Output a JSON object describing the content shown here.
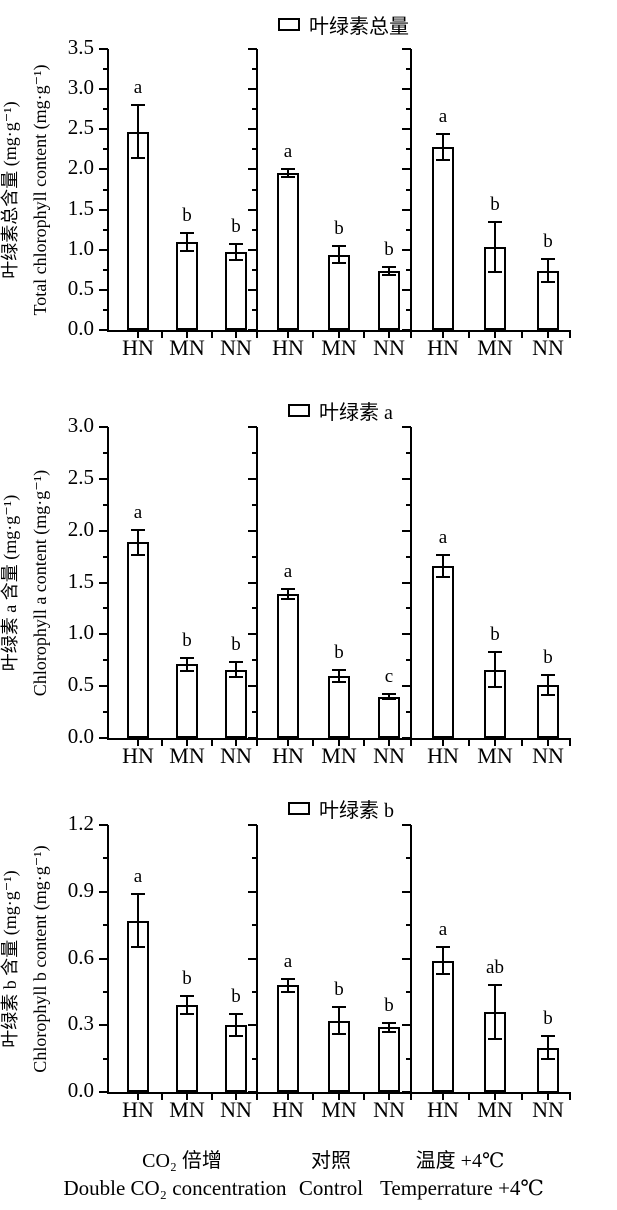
{
  "colors": {
    "ink": "#000000",
    "background": "#ffffff"
  },
  "categories_per_group": [
    "HN",
    "MN",
    "NN"
  ],
  "group_labels": [
    {
      "zh": "CO₂ 倍增",
      "en": "Double CO₂ concentration"
    },
    {
      "zh": "对照",
      "en": "Control"
    },
    {
      "zh": "温度 +4℃",
      "en": "Temperrature +4℃"
    }
  ],
  "chart_data": [
    {
      "type": "bar",
      "id": "total-chlorophyll",
      "legend": "叶绿素总量",
      "legend_position": "top-center",
      "ylabel_zh": "叶绿素总含量 (mg·g⁻¹)",
      "ylabel_en": "Total chlorophyll content (mg·g⁻¹)",
      "ylim": [
        0,
        3.5
      ],
      "ytick_major_step": 0.5,
      "ytick_labels": [
        "0.0",
        "0.5",
        "1.0",
        "1.5",
        "2.0",
        "2.5",
        "3.0",
        "3.5"
      ],
      "grid": false,
      "categories": [
        "HN",
        "MN",
        "NN",
        "HN",
        "MN",
        "NN",
        "HN",
        "MN",
        "NN"
      ],
      "values": [
        2.47,
        1.1,
        0.97,
        1.95,
        0.94,
        0.73,
        2.28,
        1.03,
        0.74
      ],
      "errors": [
        0.33,
        0.11,
        0.1,
        0.05,
        0.11,
        0.05,
        0.16,
        0.31,
        0.14
      ],
      "sig_letters": [
        "a",
        "b",
        "b",
        "a",
        "b",
        "b",
        "a",
        "b",
        "b"
      ]
    },
    {
      "type": "bar",
      "id": "chlorophyll-a",
      "legend": "叶绿素 a",
      "legend_position": "top-center",
      "ylabel_zh": "叶绿素 a 含量 (mg·g⁻¹)",
      "ylabel_en": "Chlorophyll a content (mg·g⁻¹)",
      "ylim": [
        0,
        3.0
      ],
      "ytick_major_step": 0.5,
      "ytick_labels": [
        "0.0",
        "0.5",
        "1.0",
        "1.5",
        "2.0",
        "2.5",
        "3.0"
      ],
      "grid": false,
      "categories": [
        "HN",
        "MN",
        "NN",
        "HN",
        "MN",
        "NN",
        "HN",
        "MN",
        "NN"
      ],
      "values": [
        1.89,
        0.71,
        0.66,
        1.39,
        0.6,
        0.4,
        1.66,
        0.66,
        0.51
      ],
      "errors": [
        0.12,
        0.06,
        0.07,
        0.05,
        0.06,
        0.02,
        0.11,
        0.17,
        0.1
      ],
      "sig_letters": [
        "a",
        "b",
        "b",
        "a",
        "b",
        "c",
        "a",
        "b",
        "b"
      ]
    },
    {
      "type": "bar",
      "id": "chlorophyll-b",
      "legend": "叶绿素 b",
      "legend_position": "top-center",
      "ylabel_zh": "叶绿素 b 含量 (mg·g⁻¹)",
      "ylabel_en": "Chlorophyll b content (mg·g⁻¹)",
      "ylim": [
        0,
        1.2
      ],
      "ytick_major_step": 0.3,
      "ytick_labels": [
        "0.0",
        "0.3",
        "0.6",
        "0.9",
        "1.2"
      ],
      "grid": false,
      "categories": [
        "HN",
        "MN",
        "NN",
        "HN",
        "MN",
        "NN",
        "HN",
        "MN",
        "NN"
      ],
      "values": [
        0.77,
        0.39,
        0.3,
        0.48,
        0.32,
        0.29,
        0.59,
        0.36,
        0.2
      ],
      "errors": [
        0.12,
        0.04,
        0.05,
        0.03,
        0.06,
        0.02,
        0.06,
        0.12,
        0.05
      ],
      "sig_letters": [
        "a",
        "b",
        "b",
        "a",
        "b",
        "b",
        "a",
        "ab",
        "b"
      ]
    }
  ]
}
